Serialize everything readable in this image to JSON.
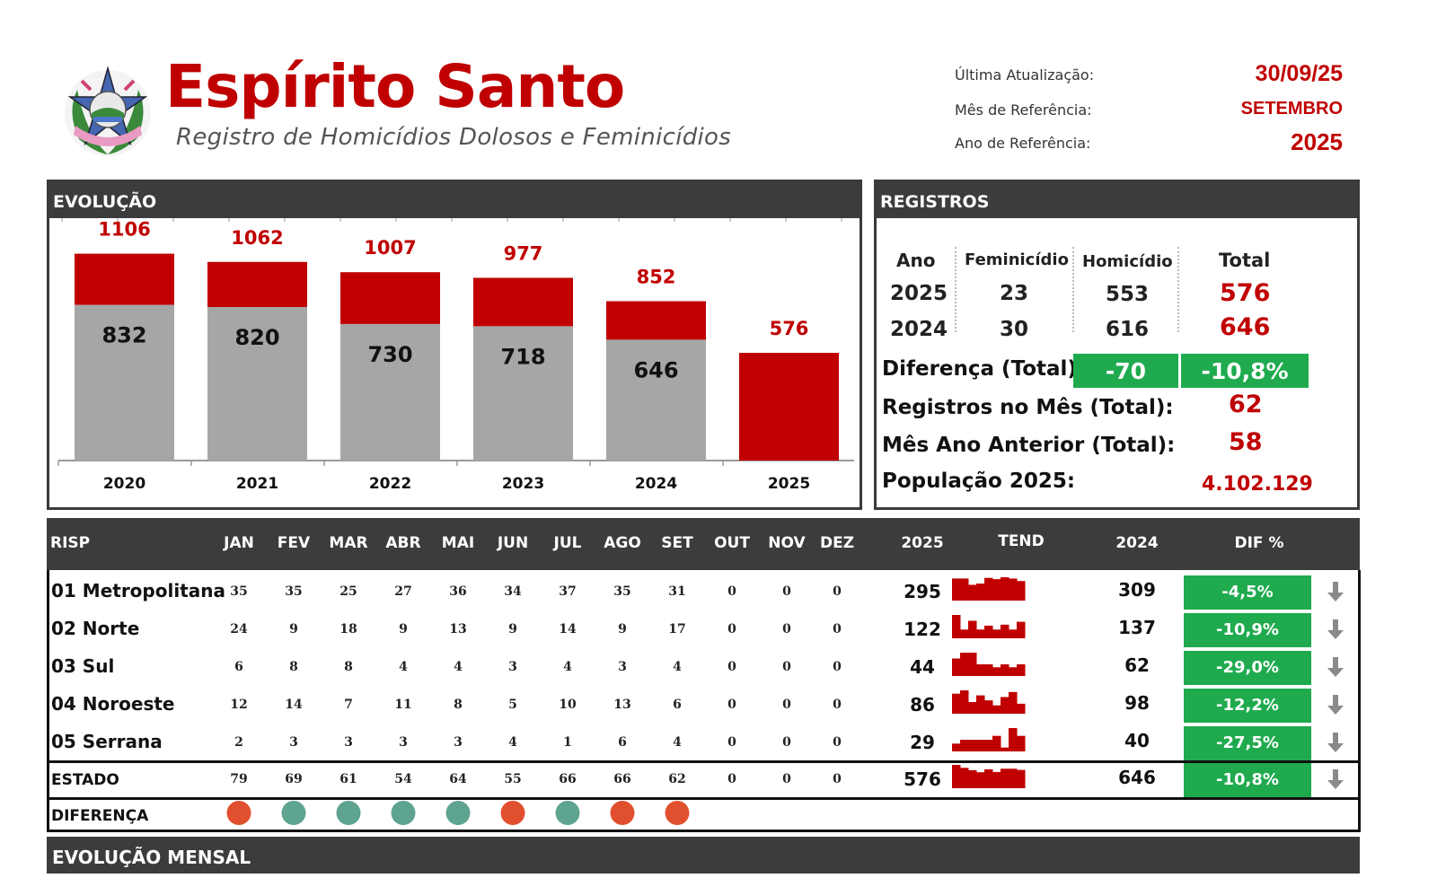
{
  "header": {
    "title": "Espírito Santo",
    "subtitle": "Registro de Homicídios Dolosos e Feminicídios",
    "last_update_label": "Última Atualização:",
    "last_update_value": "30/09/25",
    "ref_month_label": "Mês de Referência:",
    "ref_month_value": "SETEMBRO",
    "ref_year_label": "Ano de Referência:",
    "ref_year_value": "2025",
    "logo_icon": "state-coat-of-arms"
  },
  "evolution": {
    "title": "EVOLUÇÃO"
  },
  "chart_data": {
    "type": "bar",
    "categories": [
      "2020",
      "2021",
      "2022",
      "2023",
      "2024",
      "2025"
    ],
    "series": [
      {
        "values": [
          832,
          820,
          730,
          718,
          646,
          0
        ],
        "color": "#a6a6a6"
      },
      {
        "values": [
          1106,
          1062,
          1007,
          977,
          852,
          576
        ],
        "color": "#c00000"
      }
    ],
    "inner_labels": [
      "832",
      "820",
      "730",
      "718",
      "646",
      ""
    ],
    "top_labels": [
      "1106",
      "1062",
      "1007",
      "977",
      "852",
      "576"
    ],
    "ylim": [
      0,
      1200
    ]
  },
  "registros": {
    "title": "REGISTROS",
    "headers": {
      "ano": "Ano",
      "feminicidio": "Feminicídio",
      "homicidio": "Homicídio",
      "total": "Total"
    },
    "rows": [
      {
        "ano": "2025",
        "feminicidio": "23",
        "homicidio": "553",
        "total": "576"
      },
      {
        "ano": "2024",
        "feminicidio": "30",
        "homicidio": "616",
        "total": "646"
      }
    ],
    "diff_label": "Diferença (Total):",
    "diff_abs": "-70",
    "diff_pct": "-10,8%",
    "month_label": "Registros no Mês (Total):",
    "month_value": "62",
    "prev_label": "Mês Ano Anterior (Total):",
    "prev_value": "58",
    "pop_label": "População 2025:",
    "pop_value": "4.102.129"
  },
  "table": {
    "headers": {
      "risp": "RISP",
      "months": [
        "JAN",
        "FEV",
        "MAR",
        "ABR",
        "MAI",
        "JUN",
        "JUL",
        "AGO",
        "SET",
        "OUT",
        "NOV",
        "DEZ"
      ],
      "y2025": "2025",
      "tend": "TEND",
      "y2024": "2024",
      "dif": "DIF %"
    },
    "rows": [
      {
        "name": "01 Metropolitana",
        "months": [
          "35",
          "35",
          "25",
          "27",
          "36",
          "34",
          "37",
          "35",
          "31",
          "0",
          "0",
          "0"
        ],
        "y2025": "295",
        "y2024": "309",
        "dif": "-4,5%",
        "trend_icon": "arrow-down-icon"
      },
      {
        "name": "02 Norte",
        "months": [
          "24",
          "9",
          "18",
          "9",
          "13",
          "9",
          "14",
          "9",
          "17",
          "0",
          "0",
          "0"
        ],
        "y2025": "122",
        "y2024": "137",
        "dif": "-10,9%",
        "trend_icon": "arrow-down-icon"
      },
      {
        "name": "03 Sul",
        "months": [
          "6",
          "8",
          "8",
          "4",
          "4",
          "3",
          "4",
          "3",
          "4",
          "0",
          "0",
          "0"
        ],
        "y2025": "44",
        "y2024": "62",
        "dif": "-29,0%",
        "trend_icon": "arrow-down-icon"
      },
      {
        "name": "04 Noroeste",
        "months": [
          "12",
          "14",
          "7",
          "11",
          "8",
          "5",
          "10",
          "13",
          "6",
          "0",
          "0",
          "0"
        ],
        "y2025": "86",
        "y2024": "98",
        "dif": "-12,2%",
        "trend_icon": "arrow-down-icon"
      },
      {
        "name": "05 Serrana",
        "months": [
          "2",
          "3",
          "3",
          "3",
          "3",
          "4",
          "1",
          "6",
          "4",
          "0",
          "0",
          "0"
        ],
        "y2025": "29",
        "y2024": "40",
        "dif": "-27,5%",
        "trend_icon": "arrow-down-icon"
      }
    ],
    "total": {
      "name": "ESTADO",
      "months": [
        "79",
        "69",
        "61",
        "54",
        "64",
        "55",
        "66",
        "66",
        "62",
        "0",
        "0",
        "0"
      ],
      "y2025": "576",
      "y2024": "646",
      "dif": "-10,8%",
      "trend_icon": "arrow-down-icon"
    },
    "difference": {
      "label": "DIFERENÇA",
      "dots": [
        "#e1502e",
        "#5fa391",
        "#5fa391",
        "#5fa391",
        "#5fa391",
        "#e1502e",
        "#5fa391",
        "#e1502e",
        "#e1502e"
      ]
    }
  },
  "bottom": {
    "title": "EVOLUÇÃO MENSAL"
  },
  "colors": {
    "red": "#c00000",
    "gray": "#a6a6a6",
    "green": "#1faa4e",
    "dark": "#3c3c3c"
  }
}
